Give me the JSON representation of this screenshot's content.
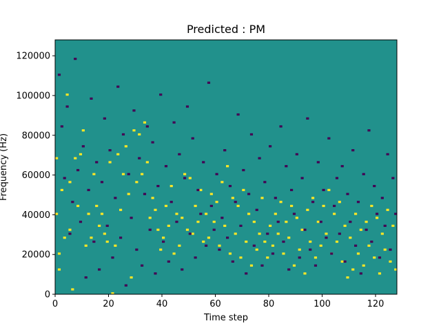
{
  "chart_data": {
    "type": "heatmap",
    "title": "Predicted : PM",
    "xlabel": "Time step",
    "ylabel": "Frequency (Hz)",
    "xlim": [
      0,
      128
    ],
    "ylim": [
      0,
      128000
    ],
    "n_cols": 128,
    "n_rows": 128,
    "row_height_hz": 1000,
    "x_ticks": [
      0,
      20,
      40,
      60,
      80,
      100,
      120
    ],
    "y_ticks": [
      0,
      20000,
      40000,
      60000,
      80000,
      100000,
      120000
    ],
    "colors": {
      "background": "#21918c",
      "high": "#fde725",
      "low": "#440154"
    },
    "values_legend": {
      "0": "low",
      "0.5": "background",
      "1": "high"
    },
    "high_cells": [
      [
        0,
        68
      ],
      [
        0,
        40
      ],
      [
        1,
        20
      ],
      [
        1,
        12
      ],
      [
        2,
        52
      ],
      [
        3,
        28
      ],
      [
        4,
        100
      ],
      [
        5,
        56
      ],
      [
        5,
        32
      ],
      [
        6,
        2
      ],
      [
        7,
        68
      ],
      [
        8,
        44
      ],
      [
        9,
        70
      ],
      [
        10,
        82
      ],
      [
        11,
        24
      ],
      [
        12,
        40
      ],
      [
        13,
        28
      ],
      [
        14,
        60
      ],
      [
        15,
        44
      ],
      [
        16,
        34
      ],
      [
        17,
        40
      ],
      [
        18,
        30
      ],
      [
        19,
        26
      ],
      [
        20,
        66
      ],
      [
        21,
        0
      ],
      [
        22,
        24
      ],
      [
        23,
        70
      ],
      [
        24,
        42
      ],
      [
        25,
        60
      ],
      [
        26,
        74
      ],
      [
        27,
        50
      ],
      [
        28,
        8
      ],
      [
        29,
        82
      ],
      [
        30,
        56
      ],
      [
        31,
        80
      ],
      [
        32,
        60
      ],
      [
        33,
        86
      ],
      [
        34,
        66
      ],
      [
        35,
        38
      ],
      [
        36,
        48
      ],
      [
        37,
        42
      ],
      [
        38,
        32
      ],
      [
        39,
        22
      ],
      [
        40,
        28
      ],
      [
        41,
        44
      ],
      [
        42,
        34
      ],
      [
        43,
        54
      ],
      [
        44,
        20
      ],
      [
        45,
        40
      ],
      [
        46,
        24
      ],
      [
        47,
        38
      ],
      [
        48,
        60
      ],
      [
        49,
        32
      ],
      [
        50,
        58
      ],
      [
        51,
        30
      ],
      [
        52,
        44
      ],
      [
        53,
        36
      ],
      [
        54,
        52
      ],
      [
        55,
        26
      ],
      [
        56,
        40
      ],
      [
        57,
        28
      ],
      [
        58,
        50
      ],
      [
        59,
        36
      ],
      [
        60,
        46
      ],
      [
        61,
        24
      ],
      [
        62,
        56
      ],
      [
        63,
        34
      ],
      [
        64,
        64
      ],
      [
        65,
        20
      ],
      [
        66,
        48
      ],
      [
        67,
        30
      ],
      [
        68,
        44
      ],
      [
        69,
        18
      ],
      [
        70,
        52
      ],
      [
        71,
        26
      ],
      [
        72,
        40
      ],
      [
        73,
        14
      ],
      [
        74,
        36
      ],
      [
        75,
        22
      ],
      [
        76,
        30
      ],
      [
        77,
        48
      ],
      [
        78,
        26
      ],
      [
        79,
        18
      ],
      [
        80,
        34
      ],
      [
        81,
        24
      ],
      [
        82,
        40
      ],
      [
        83,
        30
      ],
      [
        84,
        46
      ],
      [
        85,
        20
      ],
      [
        86,
        36
      ],
      [
        87,
        28
      ],
      [
        88,
        44
      ],
      [
        89,
        14
      ],
      [
        90,
        38
      ],
      [
        91,
        22
      ],
      [
        92,
        32
      ],
      [
        93,
        10
      ],
      [
        94,
        42
      ],
      [
        95,
        26
      ],
      [
        96,
        48
      ],
      [
        97,
        18
      ],
      [
        98,
        36
      ],
      [
        99,
        24
      ],
      [
        100,
        44
      ],
      [
        101,
        30
      ],
      [
        102,
        52
      ],
      [
        103,
        20
      ],
      [
        104,
        40
      ],
      [
        105,
        26
      ],
      [
        106,
        46
      ],
      [
        107,
        16
      ],
      [
        108,
        34
      ],
      [
        109,
        8
      ],
      [
        110,
        28
      ],
      [
        111,
        12
      ],
      [
        112,
        40
      ],
      [
        113,
        20
      ],
      [
        114,
        32
      ],
      [
        115,
        14
      ],
      [
        116,
        36
      ],
      [
        117,
        24
      ],
      [
        118,
        44
      ],
      [
        119,
        18
      ],
      [
        120,
        38
      ],
      [
        121,
        10
      ],
      [
        122,
        30
      ],
      [
        123,
        22
      ],
      [
        124,
        42
      ],
      [
        125,
        16
      ],
      [
        126,
        34
      ],
      [
        127,
        12
      ]
    ],
    "low_cells": [
      [
        1,
        110
      ],
      [
        2,
        84
      ],
      [
        3,
        58
      ],
      [
        4,
        94
      ],
      [
        5,
        30
      ],
      [
        6,
        46
      ],
      [
        7,
        118
      ],
      [
        8,
        62
      ],
      [
        9,
        36
      ],
      [
        10,
        74
      ],
      [
        11,
        8
      ],
      [
        12,
        52
      ],
      [
        13,
        98
      ],
      [
        14,
        26
      ],
      [
        15,
        66
      ],
      [
        16,
        12
      ],
      [
        17,
        56
      ],
      [
        18,
        88
      ],
      [
        19,
        34
      ],
      [
        20,
        72
      ],
      [
        21,
        18
      ],
      [
        22,
        48
      ],
      [
        23,
        104
      ],
      [
        24,
        28
      ],
      [
        25,
        80
      ],
      [
        26,
        4
      ],
      [
        27,
        60
      ],
      [
        28,
        38
      ],
      [
        29,
        92
      ],
      [
        30,
        22
      ],
      [
        31,
        68
      ],
      [
        32,
        14
      ],
      [
        33,
        50
      ],
      [
        34,
        84
      ],
      [
        35,
        32
      ],
      [
        36,
        76
      ],
      [
        37,
        10
      ],
      [
        38,
        54
      ],
      [
        39,
        100
      ],
      [
        40,
        26
      ],
      [
        41,
        64
      ],
      [
        42,
        16
      ],
      [
        43,
        46
      ],
      [
        44,
        86
      ],
      [
        45,
        36
      ],
      [
        46,
        70
      ],
      [
        47,
        12
      ],
      [
        48,
        58
      ],
      [
        49,
        94
      ],
      [
        50,
        30
      ],
      [
        51,
        78
      ],
      [
        52,
        18
      ],
      [
        53,
        52
      ],
      [
        54,
        40
      ],
      [
        55,
        66
      ],
      [
        56,
        24
      ],
      [
        57,
        106
      ],
      [
        58,
        44
      ],
      [
        59,
        32
      ],
      [
        60,
        60
      ],
      [
        61,
        22
      ],
      [
        62,
        38
      ],
      [
        63,
        72
      ],
      [
        64,
        28
      ],
      [
        65,
        54
      ],
      [
        66,
        16
      ],
      [
        67,
        46
      ],
      [
        68,
        90
      ],
      [
        69,
        34
      ],
      [
        70,
        62
      ],
      [
        71,
        10
      ],
      [
        72,
        50
      ],
      [
        73,
        80
      ],
      [
        74,
        24
      ],
      [
        75,
        42
      ],
      [
        76,
        68
      ],
      [
        77,
        14
      ],
      [
        78,
        56
      ],
      [
        79,
        30
      ],
      [
        80,
        74
      ],
      [
        81,
        20
      ],
      [
        82,
        48
      ],
      [
        83,
        36
      ],
      [
        84,
        84
      ],
      [
        85,
        26
      ],
      [
        86,
        64
      ],
      [
        87,
        12
      ],
      [
        88,
        52
      ],
      [
        89,
        40
      ],
      [
        90,
        70
      ],
      [
        91,
        18
      ],
      [
        92,
        58
      ],
      [
        93,
        32
      ],
      [
        94,
        88
      ],
      [
        95,
        22
      ],
      [
        96,
        46
      ],
      [
        97,
        14
      ],
      [
        98,
        66
      ],
      [
        99,
        36
      ],
      [
        100,
        52
      ],
      [
        101,
        28
      ],
      [
        102,
        78
      ],
      [
        103,
        20
      ],
      [
        104,
        44
      ],
      [
        105,
        58
      ],
      [
        106,
        30
      ],
      [
        107,
        64
      ],
      [
        108,
        16
      ],
      [
        109,
        50
      ],
      [
        110,
        36
      ],
      [
        111,
        72
      ],
      [
        112,
        24
      ],
      [
        113,
        46
      ],
      [
        114,
        10
      ],
      [
        115,
        60
      ],
      [
        116,
        32
      ],
      [
        117,
        82
      ],
      [
        118,
        26
      ],
      [
        119,
        54
      ],
      [
        120,
        40
      ],
      [
        121,
        18
      ],
      [
        122,
        48
      ],
      [
        123,
        34
      ],
      [
        124,
        70
      ],
      [
        125,
        22
      ],
      [
        126,
        58
      ],
      [
        127,
        40
      ]
    ]
  }
}
